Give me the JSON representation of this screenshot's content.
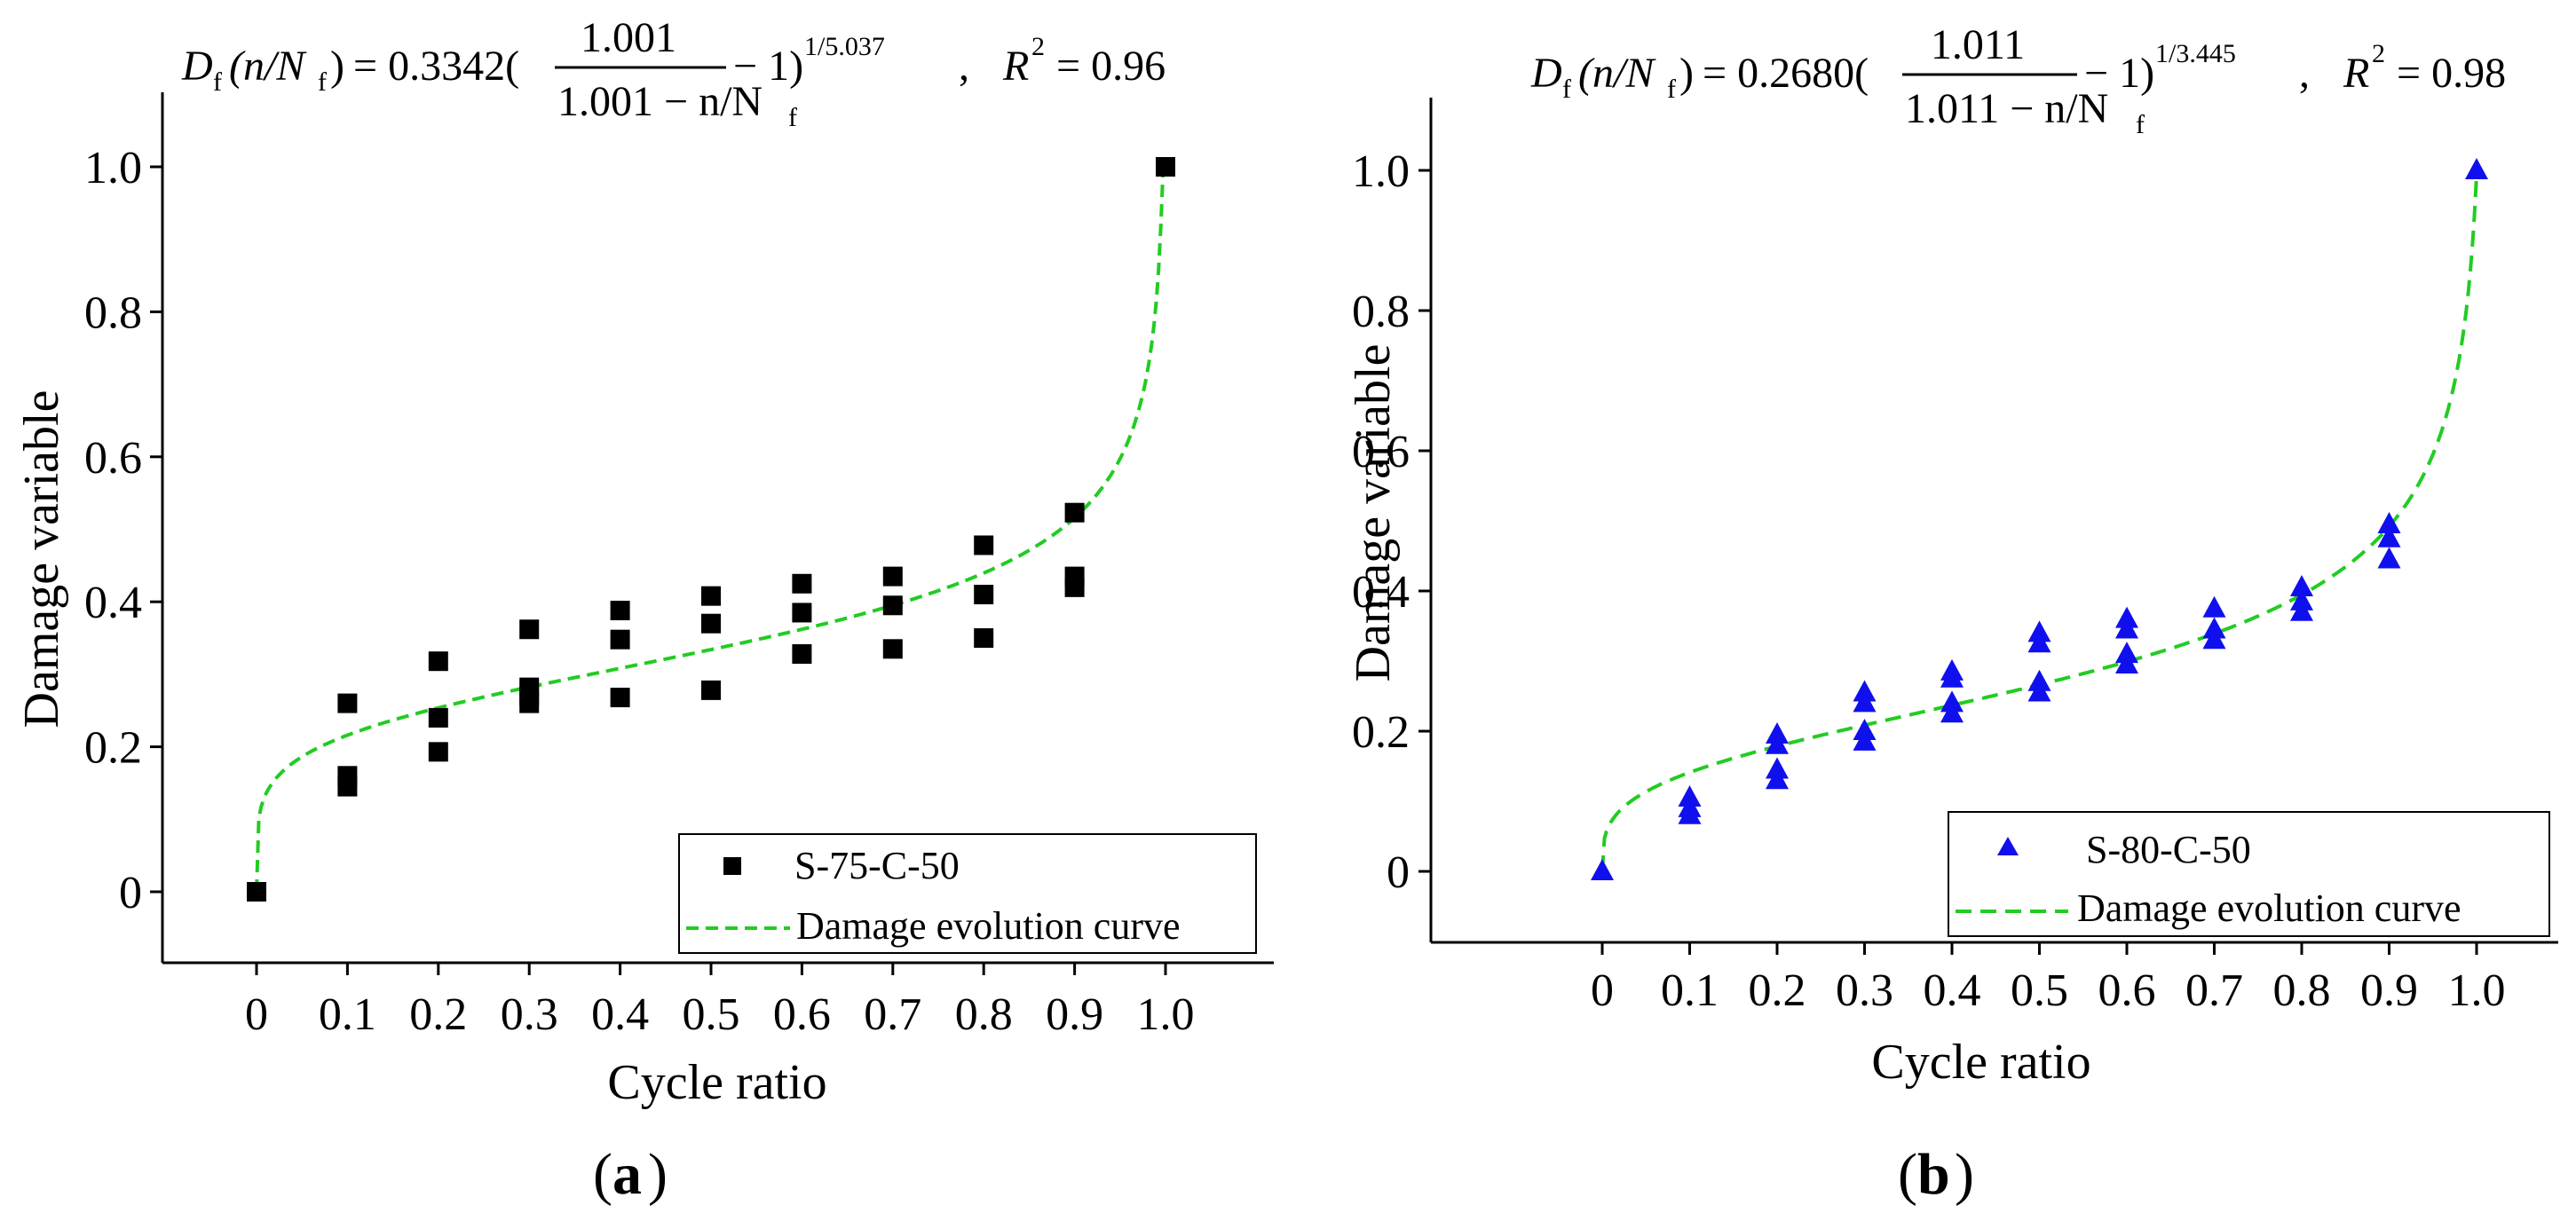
{
  "chart_data": [
    {
      "type": "scatter",
      "panel_label": "a",
      "formula": {
        "lhs_D": "D",
        "lhs_sub": "f",
        "lhs_args": "(n/N",
        "lhs_args_sub": "f",
        "lhs_close": ")",
        "eq_coef": "= 0.3342(",
        "numerator": "1.001",
        "denominator": "1.001 − n/N",
        "denominator_sub": "f",
        "tail": "− 1)",
        "exponent": "1/5.037",
        "r2_label": "R",
        "r2_sup": "2",
        "r2_value": "= 0.96"
      },
      "xlabel": "Cycle ratio",
      "ylabel": "Damage variable",
      "xlim": [
        -0.1,
        1.05
      ],
      "ylim": [
        -0.1,
        1.1
      ],
      "xticks": [
        "0",
        "0.1",
        "0.2",
        "0.3",
        "0.4",
        "0.5",
        "0.6",
        "0.7",
        "0.8",
        "0.9",
        "1.0"
      ],
      "xtick_values": [
        0,
        0.1,
        0.2,
        0.3,
        0.4,
        0.5,
        0.6,
        0.7,
        0.8,
        0.9,
        1.0
      ],
      "yticks": [
        "0",
        "0.2",
        "0.4",
        "0.6",
        "0.8",
        "1.0"
      ],
      "ytick_values": [
        0,
        0.2,
        0.4,
        0.6,
        0.8,
        1.0
      ],
      "legend_position": "bottom-right",
      "series": [
        {
          "name": "S-75-C-50",
          "kind": "scatter",
          "marker": "square",
          "color": "#000000",
          "points": [
            [
              0,
              0
            ],
            [
              0.1,
              0.26
            ],
            [
              0.1,
              0.16
            ],
            [
              0.1,
              0.145
            ],
            [
              0.2,
              0.318
            ],
            [
              0.2,
              0.24
            ],
            [
              0.2,
              0.193
            ],
            [
              0.3,
              0.362
            ],
            [
              0.3,
              0.282
            ],
            [
              0.3,
              0.27
            ],
            [
              0.3,
              0.26
            ],
            [
              0.4,
              0.388
            ],
            [
              0.4,
              0.348
            ],
            [
              0.4,
              0.268
            ],
            [
              0.5,
              0.408
            ],
            [
              0.5,
              0.37
            ],
            [
              0.5,
              0.278
            ],
            [
              0.6,
              0.425
            ],
            [
              0.6,
              0.385
            ],
            [
              0.6,
              0.328
            ],
            [
              0.7,
              0.435
            ],
            [
              0.7,
              0.395
            ],
            [
              0.7,
              0.335
            ],
            [
              0.8,
              0.478
            ],
            [
              0.8,
              0.41
            ],
            [
              0.8,
              0.35
            ],
            [
              0.9,
              0.523
            ],
            [
              0.9,
              0.435
            ],
            [
              0.9,
              0.42
            ],
            [
              1.0,
              1.0
            ]
          ]
        },
        {
          "name": "Damage evolution curve",
          "kind": "fit",
          "color": "#22cc22",
          "coefficient": 0.3342,
          "a": 1.001,
          "exponent_denominator": 5.037
        }
      ]
    },
    {
      "type": "scatter",
      "panel_label": "b",
      "formula": {
        "lhs_D": "D",
        "lhs_sub": "f",
        "lhs_args": "(n/N",
        "lhs_args_sub": "f",
        "lhs_close": ")",
        "eq_coef": "= 0.2680(",
        "numerator": "1.011",
        "denominator": "1.011 − n/N",
        "denominator_sub": "f",
        "tail": "− 1)",
        "exponent": "1/3.445",
        "r2_label": "R",
        "r2_sup": "2",
        "r2_value": "= 0.98"
      },
      "xlabel": "Cycle ratio",
      "ylabel": "Damage variable",
      "xlim": [
        -0.1,
        1.05
      ],
      "ylim": [
        -0.1,
        1.1
      ],
      "xticks": [
        "0",
        "0.1",
        "0.2",
        "0.3",
        "0.4",
        "0.5",
        "0.6",
        "0.7",
        "0.8",
        "0.9",
        "1.0"
      ],
      "xtick_values": [
        0,
        0.1,
        0.2,
        0.3,
        0.4,
        0.5,
        0.6,
        0.7,
        0.8,
        0.9,
        1.0
      ],
      "yticks": [
        "0",
        "0.2",
        "0.4",
        "0.6",
        "0.8",
        "1.0"
      ],
      "ytick_values": [
        0,
        0.2,
        0.4,
        0.6,
        0.8,
        1.0
      ],
      "legend_position": "bottom-right",
      "series": [
        {
          "name": "S-80-C-50",
          "kind": "scatter",
          "marker": "triangle",
          "color": "#1010ee",
          "points": [
            [
              0,
              0
            ],
            [
              0.1,
              0.105
            ],
            [
              0.1,
              0.09
            ],
            [
              0.1,
              0.08
            ],
            [
              0.2,
              0.195
            ],
            [
              0.2,
              0.18
            ],
            [
              0.2,
              0.145
            ],
            [
              0.2,
              0.13
            ],
            [
              0.3,
              0.255
            ],
            [
              0.3,
              0.24
            ],
            [
              0.3,
              0.2
            ],
            [
              0.3,
              0.185
            ],
            [
              0.4,
              0.285
            ],
            [
              0.4,
              0.275
            ],
            [
              0.4,
              0.24
            ],
            [
              0.4,
              0.225
            ],
            [
              0.5,
              0.34
            ],
            [
              0.5,
              0.325
            ],
            [
              0.5,
              0.27
            ],
            [
              0.5,
              0.255
            ],
            [
              0.6,
              0.36
            ],
            [
              0.6,
              0.345
            ],
            [
              0.6,
              0.31
            ],
            [
              0.6,
              0.295
            ],
            [
              0.7,
              0.375
            ],
            [
              0.7,
              0.345
            ],
            [
              0.7,
              0.33
            ],
            [
              0.8,
              0.405
            ],
            [
              0.8,
              0.385
            ],
            [
              0.8,
              0.37
            ],
            [
              0.9,
              0.495
            ],
            [
              0.9,
              0.475
            ],
            [
              0.9,
              0.445
            ],
            [
              1.0,
              1.0
            ]
          ]
        },
        {
          "name": "Damage evolution curve",
          "kind": "fit",
          "color": "#22cc22",
          "coefficient": 0.268,
          "a": 1.011,
          "exponent_denominator": 3.445
        }
      ]
    }
  ]
}
